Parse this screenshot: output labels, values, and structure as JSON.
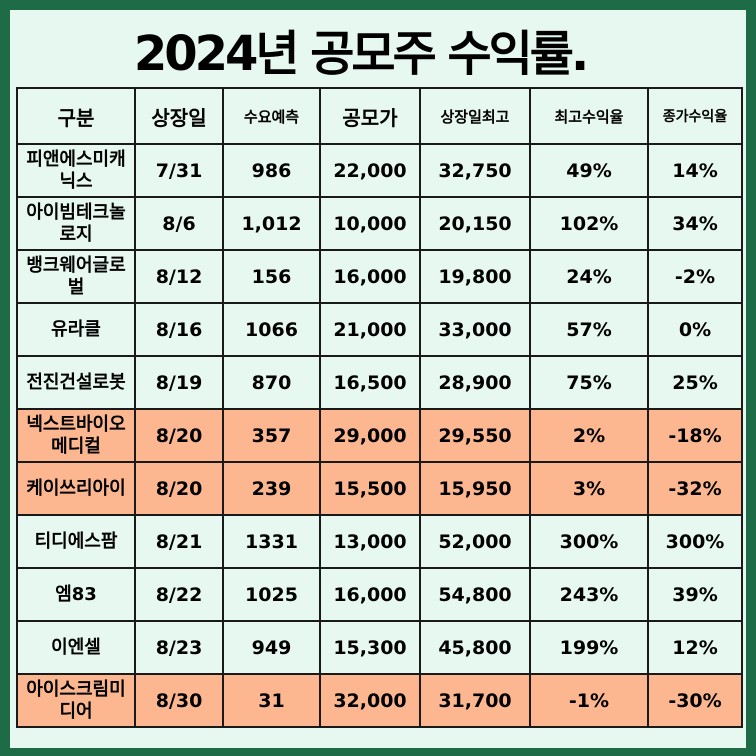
{
  "title": "2024년 공모주 수익률.",
  "headers": [
    "구분",
    "상장일",
    "수요예측",
    "공모가",
    "상장일최고",
    "최고수익율",
    "종가수익율"
  ],
  "rows": [
    {
      "name": "피앤에스미캐닉스",
      "date": "7/31",
      "demand": "986",
      "price": "22,000",
      "high": "32,750",
      "max_return": "49%",
      "close_return": "14%",
      "highlight": false
    },
    {
      "name": "아이빔테크놀로지",
      "date": "8/6",
      "demand": "1,012",
      "price": "10,000",
      "high": "20,150",
      "max_return": "102%",
      "close_return": "34%",
      "highlight": false
    },
    {
      "name": "뱅크웨어글로벌",
      "date": "8/12",
      "demand": "156",
      "price": "16,000",
      "high": "19,800",
      "max_return": "24%",
      "close_return": "-2%",
      "highlight": false
    },
    {
      "name": "유라클",
      "date": "8/16",
      "demand": "1066",
      "price": "21,000",
      "high": "33,000",
      "max_return": "57%",
      "close_return": "0%",
      "highlight": false
    },
    {
      "name": "전진건설로봇",
      "date": "8/19",
      "demand": "870",
      "price": "16,500",
      "high": "28,900",
      "max_return": "75%",
      "close_return": "25%",
      "highlight": false
    },
    {
      "name": "넥스트바이오메디컬",
      "date": "8/20",
      "demand": "357",
      "price": "29,000",
      "high": "29,550",
      "max_return": "2%",
      "close_return": "-18%",
      "highlight": true
    },
    {
      "name": "케이쓰리아이",
      "date": "8/20",
      "demand": "239",
      "price": "15,500",
      "high": "15,950",
      "max_return": "3%",
      "close_return": "-32%",
      "highlight": true
    },
    {
      "name": "티디에스팜",
      "date": "8/21",
      "demand": "1331",
      "price": "13,000",
      "high": "52,000",
      "max_return": "300%",
      "close_return": "300%",
      "highlight": false
    },
    {
      "name": "엠83",
      "date": "8/22",
      "demand": "1025",
      "price": "16,000",
      "high": "54,800",
      "max_return": "243%",
      "close_return": "39%",
      "highlight": false
    },
    {
      "name": "이엔셀",
      "date": "8/23",
      "demand": "949",
      "price": "15,300",
      "high": "45,800",
      "max_return": "199%",
      "close_return": "12%",
      "highlight": false
    },
    {
      "name": "아이스크림미디어",
      "date": "8/30",
      "demand": "31",
      "price": "32,000",
      "high": "31,700",
      "max_return": "-1%",
      "close_return": "-30%",
      "highlight": true
    }
  ],
  "colors": {
    "frame": "#1e6b48",
    "background": "#e6f8ef",
    "highlight": "#fcb791",
    "border": "#1a1a1a"
  }
}
